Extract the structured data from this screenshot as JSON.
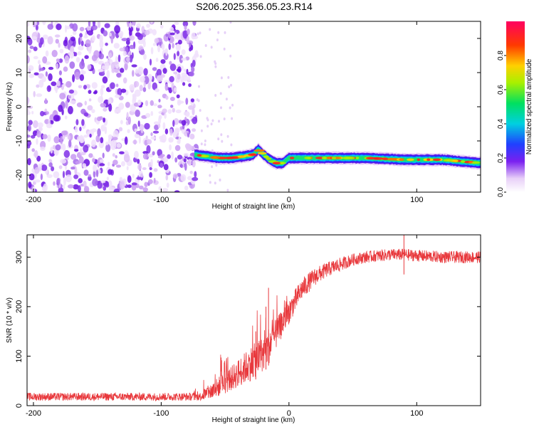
{
  "title": "S206.2025.356.05.23.R14",
  "chart_data": [
    {
      "type": "heatmap",
      "xlabel": "Height of straight line (km)",
      "ylabel": "Frequency (Hz)",
      "xlim": [
        -205,
        150
      ],
      "ylim": [
        -25,
        25
      ],
      "xticks": [
        -200,
        -100,
        0,
        100
      ],
      "yticks": [
        20,
        10,
        0,
        -10,
        -20
      ],
      "grid": false,
      "colorbar": {
        "label": "Normalized spectral amplitude",
        "range": [
          0,
          1
        ],
        "ticks": [
          "0.0",
          "0.2",
          "0.4",
          "0.6",
          "0.8"
        ]
      },
      "noise_region_x": [
        -205,
        -72
      ],
      "band": {
        "x": [
          -74,
          -65,
          -55,
          -45,
          -35,
          -28,
          -24,
          -20,
          -15,
          -10,
          -5,
          0,
          10,
          30,
          60,
          90,
          120,
          150
        ],
        "center_freq": [
          -14,
          -14.5,
          -15,
          -15,
          -14.5,
          -14,
          -12.5,
          -14,
          -15.5,
          -16.5,
          -16.5,
          -15,
          -15,
          -15,
          -15,
          -15.5,
          -15.5,
          -16.5
        ],
        "halfwidth_hz": 1.5
      }
    },
    {
      "type": "line",
      "xlabel": "Height of straight line (km)",
      "ylabel": "SNR (10 * v/v)",
      "xlim": [
        -205,
        150
      ],
      "ylim": [
        0,
        345
      ],
      "xticks": [
        -200,
        -100,
        0,
        100
      ],
      "yticks": [
        300,
        200,
        100,
        0
      ],
      "grid": false,
      "series": [
        {
          "color": "#e8383c",
          "envelope": {
            "x": [
              -205,
              -150,
              -100,
              -70,
              -60,
              -45,
              -30,
              -20,
              -15,
              -10,
              0,
              10,
              20,
              30,
              40,
              50,
              60,
              70,
              80,
              90,
              100,
              120,
              150
            ],
            "y": [
              18,
              18,
              18,
              18,
              30,
              55,
              85,
              105,
              125,
              145,
              190,
              235,
              260,
              275,
              285,
              295,
              300,
              303,
              305,
              305,
              303,
              300,
              300
            ],
            "noise": [
              8,
              8,
              8,
              8,
              18,
              25,
              35,
              35,
              38,
              30,
              25,
              22,
              18,
              15,
              14,
              12,
              12,
              12,
              12,
              12,
              12,
              12,
              12
            ]
          },
          "spikes": [
            {
              "x": -16,
              "y": 238
            },
            {
              "x": -18,
              "y": 200
            },
            {
              "x": -26,
              "y": 150
            },
            {
              "x": 90,
              "y": 345
            }
          ]
        }
      ]
    }
  ]
}
